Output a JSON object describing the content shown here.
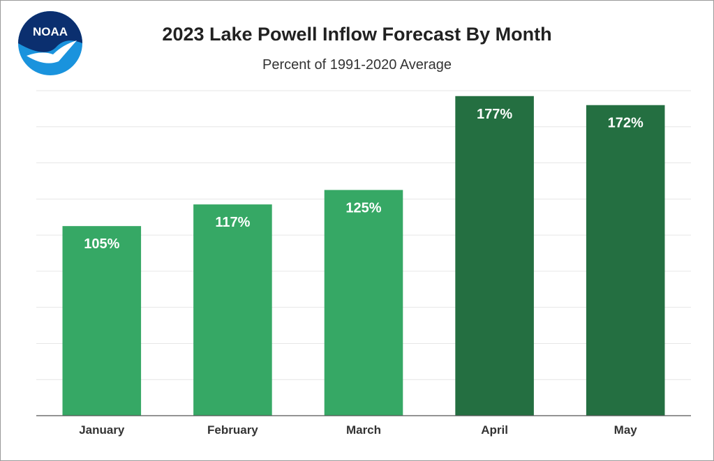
{
  "logo": {
    "text": "NOAA",
    "icon": "noaa-logo-icon",
    "colors": {
      "blue": "#1a93dd",
      "navy": "#0b2f6f"
    }
  },
  "chart_data": {
    "type": "bar",
    "title": "2023 Lake Powell Inflow Forecast By Month",
    "subtitle": "Percent of 1991-2020 Average",
    "categories": [
      "January",
      "February",
      "March",
      "April",
      "May"
    ],
    "values": [
      105,
      117,
      125,
      177,
      172
    ],
    "data_labels": [
      "105%",
      "117%",
      "125%",
      "177%",
      "172%"
    ],
    "bar_colors": [
      "#36a865",
      "#36a865",
      "#36a865",
      "#246f41",
      "#246f41"
    ],
    "ylim": [
      0,
      180
    ],
    "grid": true,
    "legend": "none"
  }
}
